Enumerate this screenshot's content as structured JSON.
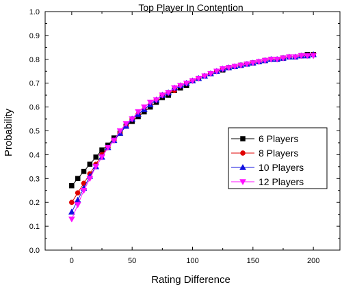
{
  "chart_data": {
    "type": "line",
    "title": "Top Player In Contention",
    "xlabel": "Rating Difference",
    "ylabel": "Probability",
    "xlim": [
      -22,
      222
    ],
    "ylim": [
      0,
      1
    ],
    "x_ticks": [
      0,
      50,
      100,
      150,
      200
    ],
    "x_tick_labels": [
      "0",
      "50",
      "100",
      "150",
      "200"
    ],
    "y_ticks": [
      0,
      0.1,
      0.2,
      0.3,
      0.4,
      0.5,
      0.6,
      0.7,
      0.8,
      0.9,
      1.0
    ],
    "y_tick_labels": [
      "0.0",
      "0.1",
      "0.2",
      "0.3",
      "0.4",
      "0.5",
      "0.6",
      "0.7",
      "0.8",
      "0.9",
      "1.0"
    ],
    "grid": false,
    "legend_position": "right",
    "x": [
      0,
      5,
      10,
      15,
      20,
      25,
      30,
      35,
      40,
      45,
      50,
      55,
      60,
      65,
      70,
      75,
      80,
      85,
      90,
      95,
      100,
      105,
      110,
      115,
      120,
      125,
      130,
      135,
      140,
      145,
      150,
      155,
      160,
      165,
      170,
      175,
      180,
      185,
      190,
      195,
      200
    ],
    "series": [
      {
        "name": "6 Players",
        "color": "#000000",
        "marker": "square",
        "values": [
          0.27,
          0.3,
          0.33,
          0.36,
          0.39,
          0.42,
          0.44,
          0.47,
          0.49,
          0.52,
          0.54,
          0.56,
          0.58,
          0.6,
          0.62,
          0.64,
          0.65,
          0.67,
          0.68,
          0.69,
          0.71,
          0.72,
          0.73,
          0.74,
          0.75,
          0.755,
          0.765,
          0.77,
          0.775,
          0.78,
          0.785,
          0.79,
          0.795,
          0.8,
          0.8,
          0.805,
          0.81,
          0.81,
          0.815,
          0.82,
          0.82
        ]
      },
      {
        "name": "8 Players",
        "color": "#e00000",
        "marker": "circle",
        "values": [
          0.2,
          0.24,
          0.28,
          0.32,
          0.36,
          0.4,
          0.43,
          0.46,
          0.49,
          0.52,
          0.55,
          0.57,
          0.59,
          0.61,
          0.63,
          0.65,
          0.66,
          0.67,
          0.69,
          0.7,
          0.71,
          0.72,
          0.73,
          0.74,
          0.75,
          0.76,
          0.765,
          0.77,
          0.775,
          0.78,
          0.785,
          0.79,
          0.795,
          0.8,
          0.8,
          0.805,
          0.81,
          0.81,
          0.815,
          0.815,
          0.82
        ]
      },
      {
        "name": "10 Players",
        "color": "#1010e0",
        "marker": "triangle-up",
        "values": [
          0.16,
          0.21,
          0.26,
          0.31,
          0.35,
          0.39,
          0.43,
          0.46,
          0.49,
          0.52,
          0.55,
          0.57,
          0.59,
          0.61,
          0.63,
          0.65,
          0.66,
          0.68,
          0.69,
          0.7,
          0.71,
          0.72,
          0.73,
          0.74,
          0.75,
          0.76,
          0.765,
          0.77,
          0.775,
          0.78,
          0.785,
          0.79,
          0.795,
          0.8,
          0.8,
          0.805,
          0.81,
          0.81,
          0.815,
          0.815,
          0.82
        ]
      },
      {
        "name": "12 Players",
        "color": "#ff10ff",
        "marker": "triangle-down",
        "values": [
          0.13,
          0.19,
          0.25,
          0.3,
          0.35,
          0.39,
          0.43,
          0.46,
          0.5,
          0.53,
          0.55,
          0.58,
          0.6,
          0.62,
          0.63,
          0.65,
          0.66,
          0.68,
          0.69,
          0.7,
          0.71,
          0.72,
          0.73,
          0.74,
          0.75,
          0.76,
          0.765,
          0.77,
          0.775,
          0.78,
          0.785,
          0.79,
          0.795,
          0.8,
          0.8,
          0.805,
          0.81,
          0.81,
          0.815,
          0.815,
          0.815
        ]
      }
    ]
  }
}
